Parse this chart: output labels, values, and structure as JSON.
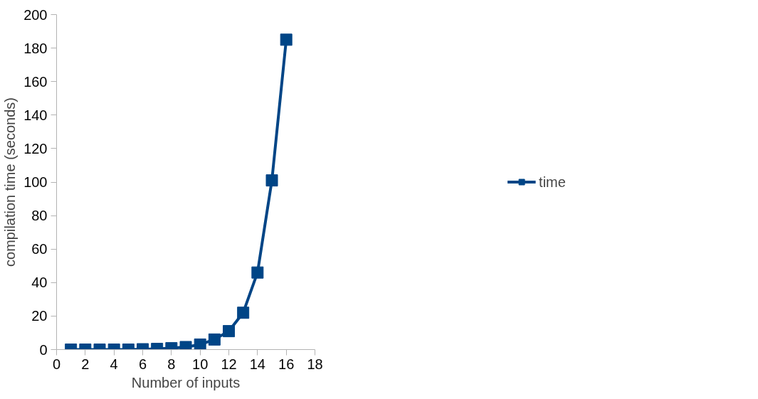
{
  "chart_data": {
    "type": "line",
    "xlabel": "Number of inputs",
    "ylabel": "compilation time (seconds)",
    "x": [
      1,
      2,
      3,
      4,
      5,
      6,
      7,
      8,
      9,
      10,
      11,
      12,
      13,
      14,
      15,
      16
    ],
    "series": [
      {
        "name": "time",
        "color": "#004586",
        "values": [
          0,
          0,
          0,
          0,
          0,
          0.2,
          0.4,
          0.8,
          1.5,
          3,
          6,
          11,
          22,
          46,
          101,
          185
        ]
      }
    ],
    "xlim": [
      0,
      18
    ],
    "xticks": [
      0,
      2,
      4,
      6,
      8,
      10,
      12,
      14,
      16,
      18
    ],
    "ylim": [
      0,
      200
    ],
    "yticks": [
      0,
      20,
      40,
      60,
      80,
      100,
      120,
      140,
      160,
      180,
      200
    ],
    "grid": false,
    "legend": "right",
    "marker": "square",
    "line_style": "solid"
  }
}
